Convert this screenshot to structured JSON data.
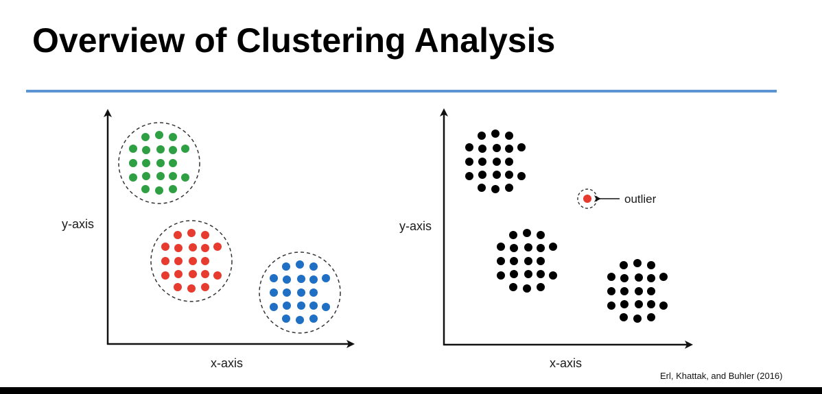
{
  "title": "Overview of Clustering Analysis",
  "citation": "Erl, Khattak, and Buhler (2016)",
  "colors": {
    "rule": "#5b93d3",
    "cluster_green": "#2ea043",
    "cluster_red": "#e63b2e",
    "cluster_blue": "#1f6fc4",
    "point_black": "#000000",
    "outlier_red": "#e63b2e"
  },
  "left_diagram": {
    "x_axis_label": "x-axis",
    "y_axis_label": "y-axis",
    "clusters": [
      {
        "color_key": "cluster_green",
        "point_count": 20
      },
      {
        "color_key": "cluster_red",
        "point_count": 20
      },
      {
        "color_key": "cluster_blue",
        "point_count": 20
      }
    ]
  },
  "right_diagram": {
    "x_axis_label": "x-axis",
    "y_axis_label": "y-axis",
    "outlier_label": "outlier",
    "clusters": [
      {
        "color_key": "point_black",
        "point_count": 20
      },
      {
        "color_key": "point_black",
        "point_count": 20
      },
      {
        "color_key": "point_black",
        "point_count": 20
      }
    ]
  }
}
